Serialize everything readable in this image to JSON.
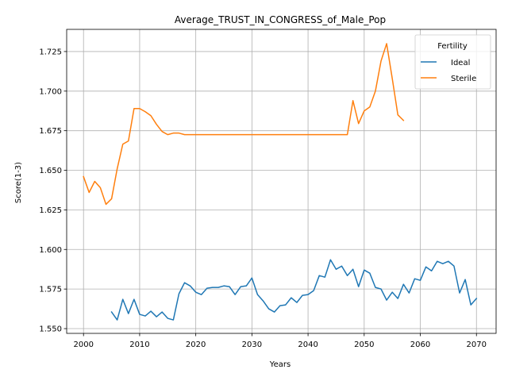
{
  "chart_data": {
    "type": "line",
    "title": "Average_TRUST_IN_CONGRESS_of_Male_Pop",
    "xlabel": "Years",
    "ylabel": "Score(1-3)",
    "xlim": [
      1997,
      2073.5
    ],
    "ylim": [
      1.547,
      1.739
    ],
    "xticks": [
      2000,
      2010,
      2020,
      2030,
      2040,
      2050,
      2060,
      2070
    ],
    "yticks": [
      1.55,
      1.575,
      1.6,
      1.625,
      1.65,
      1.675,
      1.7,
      1.725
    ],
    "ytick_labels": [
      "1.550",
      "1.575",
      "1.600",
      "1.625",
      "1.650",
      "1.675",
      "1.700",
      "1.725"
    ],
    "grid": true,
    "legend": {
      "title": "Fertility",
      "position": "top-right"
    },
    "series": [
      {
        "name": "Ideal",
        "color": "#1f77b4",
        "x_start": 2005,
        "values": [
          1.5605,
          1.5555,
          1.5685,
          1.5595,
          1.5685,
          1.559,
          1.558,
          1.561,
          1.5575,
          1.5605,
          1.5565,
          1.5555,
          1.572,
          1.579,
          1.577,
          1.573,
          1.5715,
          1.5755,
          1.576,
          1.576,
          1.577,
          1.5765,
          1.5715,
          1.5765,
          1.577,
          1.582,
          1.5715,
          1.5675,
          1.5625,
          1.5605,
          1.5645,
          1.565,
          1.5695,
          1.5665,
          1.571,
          1.5715,
          1.574,
          1.5835,
          1.5825,
          1.5935,
          1.5875,
          1.5895,
          1.5835,
          1.5875,
          1.5765,
          1.587,
          1.585,
          1.576,
          1.575,
          1.568,
          1.573,
          1.569,
          1.578,
          1.5725,
          1.5815,
          1.5805,
          1.589,
          1.5865,
          1.5925,
          1.591,
          1.5925,
          1.5895,
          1.5725,
          1.581,
          1.565,
          1.569
        ]
      },
      {
        "name": "Sterile",
        "color": "#ff7f0e",
        "x_start": 2000,
        "values": [
          1.646,
          1.636,
          1.643,
          1.639,
          1.6285,
          1.632,
          1.651,
          1.6665,
          1.6685,
          1.689,
          1.689,
          1.687,
          1.6845,
          1.679,
          1.6745,
          1.6725,
          1.6735,
          1.6735,
          1.6725,
          1.6725,
          1.6725,
          1.6725,
          1.6725,
          1.6725,
          1.6725,
          1.6725,
          1.6725,
          1.6725,
          1.6725,
          1.6725,
          1.6725,
          1.6725,
          1.6725,
          1.6725,
          1.6725,
          1.6725,
          1.6725,
          1.6725,
          1.6725,
          1.6725,
          1.6725,
          1.6725,
          1.6725,
          1.6725,
          1.6725,
          1.6725,
          1.6725,
          1.6725,
          1.694,
          1.6795,
          1.6875,
          1.69,
          1.7,
          1.719,
          1.73,
          1.708,
          1.685,
          1.6815
        ]
      }
    ]
  }
}
